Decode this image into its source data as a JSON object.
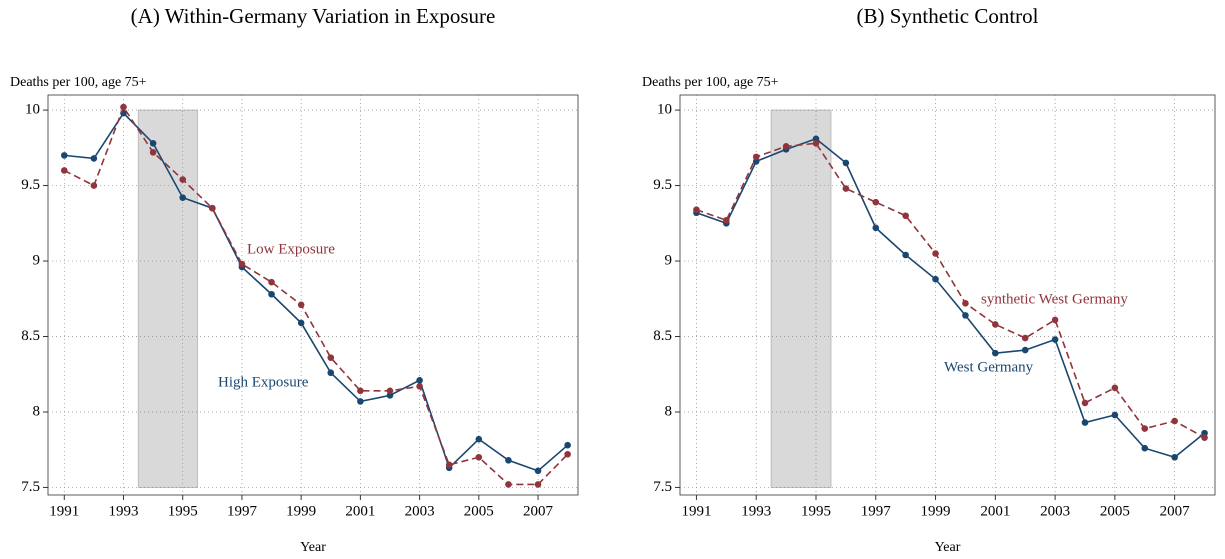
{
  "chart_data": [
    {
      "type": "line",
      "title": "(A) Within-Germany Variation in Exposure",
      "y_label": "Deaths per 100, age 75+",
      "x_label": "Year",
      "x": [
        1991,
        1992,
        1993,
        1994,
        1995,
        1996,
        1997,
        1998,
        1999,
        2000,
        2001,
        2002,
        2003,
        2004,
        2005,
        2006,
        2007,
        2008
      ],
      "series": [
        {
          "name": "High Exposure",
          "color": "#1a476f",
          "line_style": "solid",
          "values": [
            9.7,
            9.68,
            9.98,
            9.78,
            9.42,
            9.35,
            8.96,
            8.78,
            8.59,
            8.26,
            8.07,
            8.11,
            8.21,
            7.63,
            7.82,
            7.68,
            7.61,
            7.78
          ]
        },
        {
          "name": "Low Exposure",
          "color": "#90353b",
          "line_style": "dashed",
          "values": [
            9.6,
            9.5,
            10.02,
            9.72,
            9.54,
            9.35,
            8.98,
            8.86,
            8.71,
            8.36,
            8.14,
            8.14,
            8.17,
            7.65,
            7.7,
            7.52,
            7.52,
            7.72
          ]
        }
      ],
      "shade": [
        1993.5,
        1995.5
      ],
      "xlim": [
        1990.45,
        2008.35
      ],
      "xticks": [
        1991,
        1993,
        1995,
        1997,
        1999,
        2001,
        2003,
        2005,
        2007
      ],
      "ylim": [
        7.45,
        10.1
      ],
      "yticks": [
        7.5,
        8,
        8.5,
        9,
        9.5,
        10
      ],
      "grid": true
    },
    {
      "type": "line",
      "title": "(B) Synthetic Control",
      "y_label": "Deaths per 100, age 75+",
      "x_label": "Year",
      "x": [
        1991,
        1992,
        1993,
        1994,
        1995,
        1996,
        1997,
        1998,
        1999,
        2000,
        2001,
        2002,
        2003,
        2004,
        2005,
        2006,
        2007,
        2008
      ],
      "series": [
        {
          "name": "West Germany",
          "color": "#1a476f",
          "line_style": "solid",
          "values": [
            9.32,
            9.25,
            9.66,
            9.74,
            9.81,
            9.65,
            9.22,
            9.04,
            8.88,
            8.64,
            8.39,
            8.41,
            8.48,
            7.93,
            7.98,
            7.76,
            7.7,
            7.86
          ]
        },
        {
          "name": "synthetic West Germany",
          "color": "#90353b",
          "line_style": "dashed",
          "values": [
            9.34,
            9.27,
            9.69,
            9.76,
            9.78,
            9.48,
            9.39,
            9.3,
            9.05,
            8.72,
            8.58,
            8.49,
            8.61,
            8.06,
            8.16,
            7.89,
            7.94,
            7.83
          ]
        }
      ],
      "shade": [
        1993.5,
        1995.5
      ],
      "xlim": [
        1990.45,
        2008.35
      ],
      "xticks": [
        1991,
        1993,
        1995,
        1997,
        1999,
        2001,
        2003,
        2005,
        2007
      ],
      "ylim": [
        7.45,
        10.1
      ],
      "yticks": [
        7.5,
        8,
        8.5,
        9,
        9.5,
        10
      ],
      "grid": true
    }
  ]
}
